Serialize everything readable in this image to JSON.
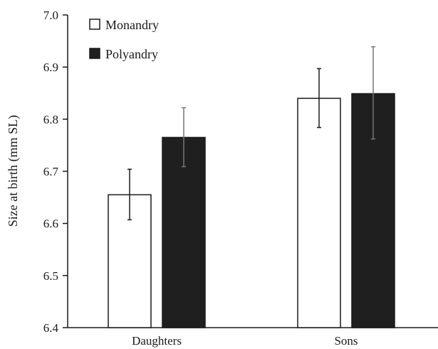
{
  "chart_data": {
    "type": "bar",
    "ylabel": "Size at birth (mm SL)",
    "xlabel": "",
    "categories": [
      "Daughters",
      "Sons"
    ],
    "ylim": [
      6.4,
      7.0
    ],
    "yticks": [
      "6.4",
      "6.5",
      "6.6",
      "6.7",
      "6.8",
      "6.9",
      "7.0"
    ],
    "grid": false,
    "legend_position": "top-left",
    "series": [
      {
        "name": "Monandry",
        "color": "#ffffff",
        "values": [
          6.655,
          6.84
        ],
        "err_low": [
          6.607,
          6.784
        ],
        "err_high": [
          6.704,
          6.897
        ]
      },
      {
        "name": "Polyandry",
        "color": "#1f1f1f",
        "values": [
          6.765,
          6.849
        ],
        "err_low": [
          6.709,
          6.762
        ],
        "err_high": [
          6.822,
          6.939
        ]
      }
    ]
  }
}
